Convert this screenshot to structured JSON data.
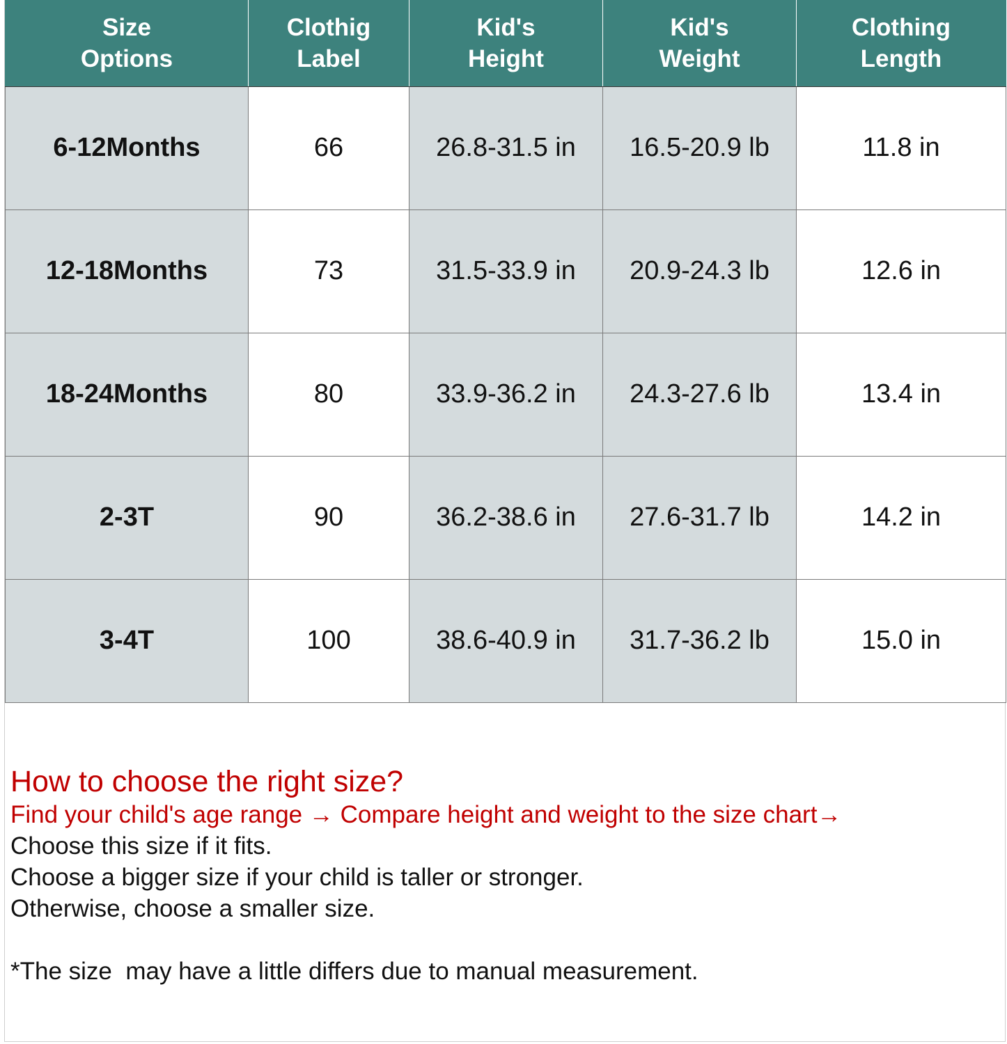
{
  "table": {
    "headers": [
      [
        "Size",
        "Options"
      ],
      [
        "Clothig",
        "Label"
      ],
      [
        "Kid's",
        "Height"
      ],
      [
        "Kid's",
        "Weight"
      ],
      [
        "Clothing",
        "Length"
      ]
    ],
    "rows": [
      [
        "6-12Months",
        "66",
        "26.8-31.5 in",
        "16.5-20.9 lb",
        "11.8 in"
      ],
      [
        "12-18Months",
        "73",
        "31.5-33.9 in",
        "20.9-24.3 lb",
        "12.6 in"
      ],
      [
        "18-24Months",
        "80",
        "33.9-36.2 in",
        "24.3-27.6 lb",
        "13.4 in"
      ],
      [
        "2-3T",
        "90",
        "36.2-38.6 in",
        "27.6-31.7 lb",
        "14.2 in"
      ],
      [
        "3-4T",
        "100",
        "38.6-40.9 in",
        "31.7-36.2 lb",
        "15.0 in"
      ]
    ]
  },
  "guide": {
    "heading": "How to choose the right size?",
    "steps": "Find your child's age range → Compare height and weight to the size chart→",
    "fits": "Choose this size if it fits.",
    "bigger": "Choose a bigger size if your child is taller or stronger.",
    "smaller": "Otherwise, choose a smaller size.",
    "disclaimer": "*The size  may have a little differs due to manual measurement."
  },
  "colors": {
    "header_bg": "#3d827d",
    "header_text": "#ffffff",
    "shaded_cell": "#d4dbdd",
    "accent_red": "#c00000"
  }
}
